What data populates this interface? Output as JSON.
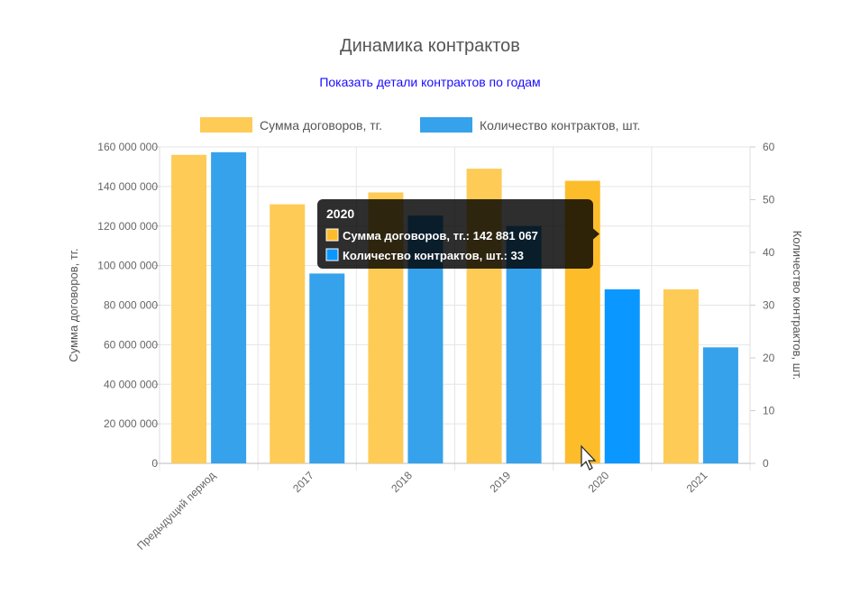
{
  "header": {
    "title": "Динамика контрактов",
    "details_link": "Показать детали контрактов по годам"
  },
  "colors": {
    "sum_bar": "#fdcb56",
    "sum_bar_active": "#fdbd2a",
    "count_bar": "#36a2eb",
    "count_bar_active": "#0a97ff",
    "grid": "#e5e5e5",
    "tooltip_bg": "#000000"
  },
  "chart_data": {
    "type": "bar",
    "title": "Динамика контрактов",
    "categories": [
      "Предыдущий период",
      "2017",
      "2018",
      "2019",
      "2020",
      "2021"
    ],
    "series": [
      {
        "name": "Сумма договоров, тг.",
        "axis": "left",
        "values": [
          156000000,
          131000000,
          137000000,
          149000000,
          142881067,
          88000000
        ]
      },
      {
        "name": "Количество контрактов, шт.",
        "axis": "right",
        "values": [
          59,
          36,
          47,
          45,
          33,
          22
        ]
      }
    ],
    "ylabel_left": "Сумма договоров, тг.",
    "ylabel_right": "Количество контрактов, шт.",
    "ylim_left": [
      0,
      160000000
    ],
    "ylim_right": [
      0,
      60
    ],
    "y_ticks_left": [
      "0",
      "20 000 000",
      "40 000 000",
      "60 000 000",
      "80 000 000",
      "100 000 000",
      "120 000 000",
      "140 000 000",
      "160 000 000"
    ],
    "y_ticks_right": [
      "0",
      "10",
      "20",
      "30",
      "40",
      "50",
      "60"
    ],
    "legend_position": "top-center",
    "grid": true,
    "tooltip": {
      "title": "2020",
      "lines": [
        "Сумма договоров, тг.: 142 881 067",
        "Количество контрактов, шт.: 33"
      ]
    }
  }
}
